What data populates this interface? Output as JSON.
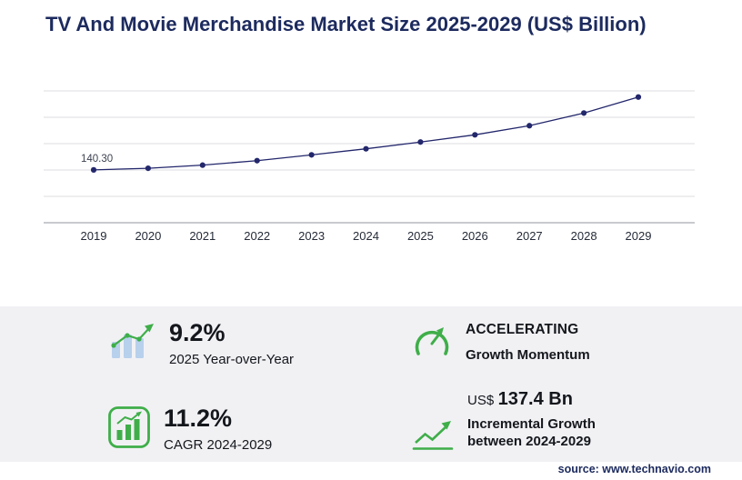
{
  "title": "TV And Movie Merchandise Market Size 2025-2029 (US$ Billion)",
  "source": "source: www.technavio.com",
  "colors": {
    "navy": "#1c2a5e",
    "line": "#23276b",
    "green": "#3fae49",
    "light_blue": "#b7d0ec",
    "panel_bg": "#f1f1f4",
    "gridline": "#dddde1",
    "axis": "#a7abb2"
  },
  "chart_data": {
    "type": "line",
    "title": "TV And Movie Merchandise Market Size 2025-2029 (US$ Billion)",
    "x": [
      "2019",
      "2020",
      "2021",
      "2022",
      "2023",
      "2024",
      "2025",
      "2026",
      "2027",
      "2028",
      "2029"
    ],
    "values": [
      140.3,
      144.6,
      152.9,
      164.8,
      180.2,
      196.3,
      214.3,
      233.4,
      257.6,
      291.2,
      333.7
    ],
    "point_label": "140.30",
    "labeled_point_index": 0,
    "ylim": [
      0,
      350
    ],
    "gridline_count": 5,
    "xlabel": "",
    "ylabel": "",
    "legend": "none",
    "grid": "horizontal"
  },
  "stats": [
    {
      "icon": "yoy-growth-icon",
      "value": "9.2%",
      "label": "2025 Year-over-Year"
    },
    {
      "icon": "momentum-gauge-icon",
      "value": "ACCELERATING",
      "label": "Growth Momentum"
    },
    {
      "icon": "cagr-bars-icon",
      "value": "11.2%",
      "label": "CAGR 2024-2029"
    },
    {
      "icon": "incremental-growth-icon",
      "value_prefix": "US$",
      "value": "137.4 Bn",
      "label_line1": "Incremental Growth",
      "label_line2": "between 2024-2029"
    }
  ]
}
